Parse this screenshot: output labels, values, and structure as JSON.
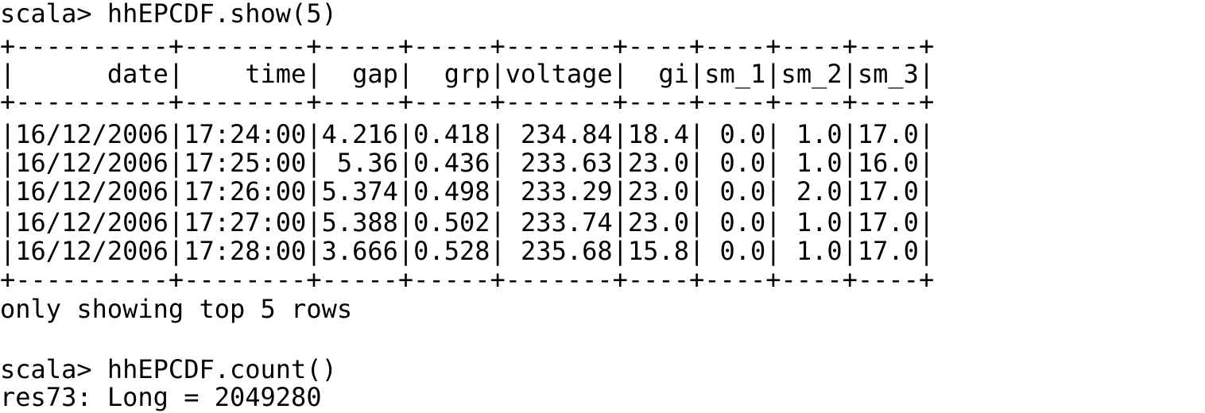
{
  "terminal": {
    "line_1": "scala> hhEPCDF.show(5)",
    "border_top": "+----------+--------+-----+-----+-------+----+----+----+----+",
    "header_row": "|      date|    time|  gap|  grp|voltage|  gi|sm_1|sm_2|sm_3|",
    "border_mid": "+----------+--------+-----+-----+-------+----+----+----+----+",
    "rows": [
      "|16/12/2006|17:24:00|4.216|0.418| 234.84|18.4| 0.0| 1.0|17.0|",
      "|16/12/2006|17:25:00| 5.36|0.436| 233.63|23.0| 0.0| 1.0|16.0|",
      "|16/12/2006|17:26:00|5.374|0.498| 233.29|23.0| 0.0| 2.0|17.0|",
      "|16/12/2006|17:27:00|5.388|0.502| 233.74|23.0| 0.0| 1.0|17.0|",
      "|16/12/2006|17:28:00|3.666|0.528| 235.68|15.8| 0.0| 1.0|17.0|"
    ],
    "border_bottom": "+----------+--------+-----+-----+-------+----+----+----+----+",
    "footer": "only showing top 5 rows",
    "line_2": "scala> hhEPCDF.count()",
    "result": "res73: Long = 2049280"
  }
}
